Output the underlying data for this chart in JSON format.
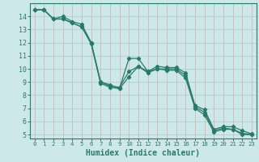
{
  "xlabel": "Humidex (Indice chaleur)",
  "xlim": [
    -0.5,
    23.5
  ],
  "ylim": [
    4.7,
    15.0
  ],
  "yticks": [
    5,
    6,
    7,
    8,
    9,
    10,
    11,
    12,
    13,
    14
  ],
  "xticks": [
    0,
    1,
    2,
    3,
    4,
    5,
    6,
    7,
    8,
    9,
    10,
    11,
    12,
    13,
    14,
    15,
    16,
    17,
    18,
    19,
    20,
    21,
    22,
    23
  ],
  "bg_color": "#cce8e8",
  "grid_color": "#aacccc",
  "line_color": "#2a7a6a",
  "series": [
    [
      14.5,
      14.5,
      13.8,
      14.0,
      13.6,
      13.4,
      12.0,
      9.0,
      8.8,
      8.5,
      10.8,
      10.8,
      9.8,
      10.2,
      10.1,
      10.1,
      9.7,
      7.2,
      6.9,
      5.4,
      5.6,
      5.6,
      5.3,
      5.05
    ],
    [
      14.5,
      14.5,
      13.8,
      13.8,
      13.5,
      13.2,
      12.0,
      9.0,
      8.7,
      8.6,
      9.8,
      10.2,
      9.8,
      10.0,
      10.0,
      10.0,
      9.5,
      7.1,
      6.7,
      5.3,
      5.5,
      5.4,
      5.1,
      5.0
    ],
    [
      14.5,
      14.5,
      13.8,
      13.8,
      13.5,
      13.2,
      11.9,
      8.9,
      8.6,
      8.5,
      9.4,
      10.2,
      9.7,
      10.0,
      9.9,
      9.9,
      9.3,
      7.0,
      6.5,
      5.2,
      5.4,
      5.4,
      5.0,
      5.0
    ]
  ]
}
